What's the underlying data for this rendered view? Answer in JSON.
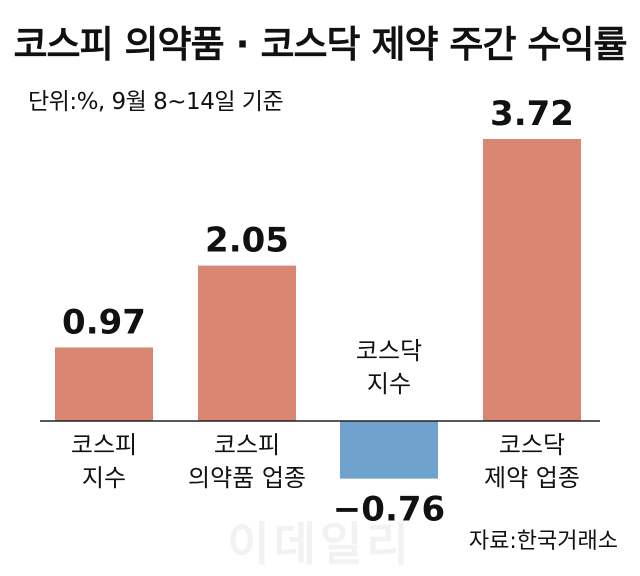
{
  "title": "코스피 의약품 · 코스닥 제약 주간 수익률",
  "subtitle": "단위:%, 9월 8~14일 기준",
  "source": "자료:한국거래소",
  "watermark": "이데일리",
  "colors": {
    "positive": "#d98673",
    "negative": "#6fa2cc",
    "text": "#111111",
    "axis": "#222222"
  },
  "chart_data": {
    "type": "bar",
    "categories": [
      [
        "코스피",
        "지수"
      ],
      [
        "코스피",
        "의약품 업종"
      ],
      [
        "코스닥",
        "지수"
      ],
      [
        "코스닥",
        "제약 업종"
      ]
    ],
    "values": [
      0.97,
      2.05,
      -0.76,
      3.72
    ],
    "value_labels": [
      "0.97",
      "2.05",
      "−0.76",
      "3.72"
    ],
    "ylim": [
      -0.76,
      3.72
    ],
    "grid": false
  }
}
